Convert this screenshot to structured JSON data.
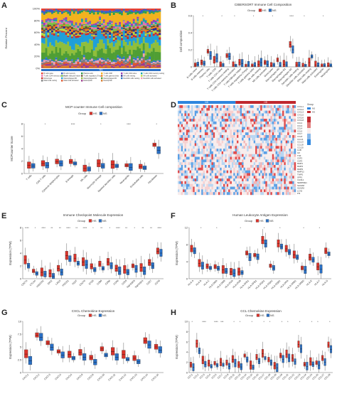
{
  "colors": {
    "HS": "#d9342b",
    "NS": "#2a6fc4",
    "heat_hi": "#c0282e",
    "heat_lo": "#2e86de"
  },
  "panels": {
    "A": {
      "letter": "A",
      "ylabel": "Relative Percent",
      "group_bar": "NS",
      "legend": [
        "B cells naive",
        "B cells memory",
        "Plasma cells",
        "T cells CD8",
        "T cells CD4 naive",
        "T cells CD4 memory resting",
        "T cells CD4 memory activated",
        "T cells follicular helper",
        "T cells regulatory (Tregs)",
        "T cells gamma delta",
        "NK cells resting",
        "NK cells activated",
        "Monocytes",
        "Macrophages M0",
        "Macrophages M1",
        "Macrophages M2",
        "Dendritic cells resting",
        "Dendritic cells activated",
        "Mast cells resting",
        "Mast cells activated",
        "Eosinophils",
        "Neutrophils"
      ],
      "colors": [
        "#e83e2f",
        "#3b5cc7",
        "#2e9e4a",
        "#f2b21e",
        "#9b3fb5",
        "#17a6a6",
        "#e86fb0",
        "#7cc242",
        "#6d4c2f",
        "#f07d1a",
        "#2b2b8f",
        "#b6d93f",
        "#c9302c",
        "#1f9fd9",
        "#8fbe3b",
        "#4f9e34",
        "#2a7ac4",
        "#f29fb5",
        "#7d7d7d",
        "#e0552b",
        "#9e3b8c",
        "#d97b2a"
      ]
    },
    "B": {
      "letter": "B",
      "title": "CIBERSORT Immune Cell Composition",
      "ylabel": "Cell composition",
      "group_label": "Group",
      "groups": [
        "HS",
        "NS"
      ],
      "sig": [
        "*",
        "*",
        "*",
        "*",
        "*",
        "****",
        "*",
        "*"
      ],
      "categories": [
        "B cells naive",
        "B cells memory",
        "Plasma cells",
        "T cells CD8",
        "T cells CD4 naive",
        "T cells CD4 memory resting",
        "T cells CD4 memory activated",
        "T cells follicular helper",
        "T cells regulatory (Tregs)",
        "T cells gamma delta",
        "NK cells resting",
        "NK cells activated",
        "Monocytes",
        "Macrophages M0",
        "Macrophages M1",
        "Macrophages M2",
        "Dendritic cells resting",
        "Dendritic cells activated",
        "Mast cells resting",
        "Mast cells activated",
        "Eosinophils",
        "Neutrophils"
      ]
    },
    "C": {
      "letter": "C",
      "title": "MCP-counter Immune Cell composition",
      "ylabel": "MCPcounter Score",
      "group_label": "Group",
      "groups": [
        "HS",
        "NS"
      ],
      "sig": [
        "*",
        "****",
        "*",
        "****",
        "*"
      ],
      "categories": [
        "T cells",
        "CD8 T cells",
        "Cytotoxic lymphocytes",
        "B lineage",
        "NK cells",
        "Monocytic lineage",
        "Myeloid dendritic cells",
        "Neutrophils",
        "Endothelial cells",
        "Fibroblasts"
      ]
    },
    "D": {
      "letter": "D",
      "group_label": "Group",
      "groups": [
        "NS",
        "HS"
      ],
      "rows": [
        "CXCL1",
        "CXCL2",
        "CXCL3",
        "CXCL5",
        "CXCL6",
        "CXCL8",
        "CCL2",
        "CCL3",
        "CCL4",
        "CCL5",
        "CCL7",
        "CCL8",
        "CCL11",
        "CCL13",
        "CCL18",
        "CCL20",
        "IL1B",
        "IL6",
        "TNF",
        "CSF2",
        "CSF3",
        "MMP1",
        "MMP3",
        "MMP9",
        "MMP12",
        "TIMP1",
        "SPP1",
        "CHI3L1",
        "SERPINE1",
        "S100A8",
        "S100A9",
        "LCN2",
        "PI3"
      ]
    },
    "E": {
      "letter": "E",
      "title": "Immune Checkpoint Molecule Expression",
      "ylabel": "Expression (TPM)",
      "group_label": "Group",
      "groups": [
        "HS",
        "NS"
      ],
      "sig": [
        "****",
        "*",
        "****",
        "**",
        "**",
        "****",
        "**",
        "****",
        "*",
        "**",
        "*",
        "****",
        "**",
        "*",
        "**",
        "**",
        "****"
      ],
      "categories": [
        "CD274",
        "CTLA4",
        "HAVCR2",
        "IDO1",
        "LAG3",
        "PDCD1",
        "TIGIT",
        "CD276",
        "ICOS",
        "CD80",
        "CD86",
        "CD40",
        "CD28",
        "TNFRSF9",
        "TNFRSF4",
        "CD27",
        "CD70"
      ]
    },
    "F": {
      "letter": "F",
      "title": "Human Leukocyte Antigen Expression",
      "ylabel": "Expression (TPM)",
      "group_label": "Group",
      "groups": [
        "HS",
        "NS"
      ],
      "sig": [
        "*",
        "*",
        "*",
        "*",
        "*",
        "*",
        "*"
      ],
      "categories": [
        "HLA-A",
        "HLA-B",
        "HLA-C",
        "HLA-DMA",
        "HLA-DMB",
        "HLA-DOA",
        "HLA-DOB",
        "HLA-DPA1",
        "HLA-DPB1",
        "HLA-DQA1",
        "HLA-DQA2",
        "HLA-DQB1",
        "HLA-DRA",
        "HLA-DRB1",
        "HLA-DRB5",
        "HLA-E",
        "HLA-F",
        "HLA-G"
      ]
    },
    "G": {
      "letter": "G",
      "title": "CXCL Chemokine Expression",
      "ylabel": "Expression (TPM)",
      "group_label": "Group",
      "groups": [
        "HS",
        "NS"
      ],
      "categories": [
        "CXCL1",
        "CXCL2",
        "CXCL3",
        "CXCL5",
        "CXCL6",
        "CXCL8",
        "CXCL9",
        "CXCL10",
        "CXCL11",
        "CXCL12",
        "CXCL13",
        "CXCL14",
        "CXCL16"
      ]
    },
    "H": {
      "letter": "H",
      "title": "CCL Chemokine Expression",
      "ylabel": "Expression (TPM)",
      "group_label": "Group",
      "groups": [
        "HS",
        "NS"
      ],
      "sig": [
        "*",
        "****",
        "****",
        "***",
        "*",
        "*",
        "*",
        "*",
        "*",
        "*",
        "*",
        "*",
        "*",
        "*",
        "*"
      ],
      "categories": [
        "CCL1",
        "CCL2",
        "CCL3",
        "CCL4",
        "CCL5",
        "CCL7",
        "CCL8",
        "CCL11",
        "CCL13",
        "CCL14",
        "CCL15",
        "CCL16",
        "CCL17",
        "CCL18",
        "CCL19",
        "CCL20",
        "CCL21",
        "CCL22",
        "CCL23",
        "CCL24",
        "CCL25",
        "CCL26",
        "CCL27",
        "CCL28"
      ]
    }
  },
  "chart_data": [
    {
      "type": "bar",
      "panel": "A",
      "stacked": true,
      "ylabel": "Relative Percent",
      "ylim": [
        0,
        100
      ],
      "yticks": [
        "0%",
        "20%",
        "40%",
        "60%",
        "80%",
        "100%"
      ],
      "n_samples": 60
    },
    {
      "type": "box",
      "panel": "B",
      "title": "CIBERSORT Immune Cell Composition",
      "ylabel": "Cell composition",
      "ylim": [
        0,
        0.6
      ],
      "yticks": [
        0,
        0.2,
        0.4,
        0.6
      ],
      "series": [
        {
          "name": "HS",
          "medians": [
            0.02,
            0.05,
            0.18,
            0.08,
            0.02,
            0.13,
            0.02,
            0.05,
            0.01,
            0.01,
            0.03,
            0.05,
            0.01,
            0.08,
            0.03,
            0.26,
            0.02,
            0.01,
            0.05,
            0.02,
            0.01,
            0.01
          ]
        },
        {
          "name": "NS",
          "medians": [
            0.03,
            0.04,
            0.13,
            0.1,
            0.02,
            0.12,
            0.01,
            0.04,
            0.02,
            0.01,
            0.05,
            0.03,
            0.02,
            0.01,
            0.02,
            0.2,
            0.02,
            0.01,
            0.12,
            0.01,
            0.01,
            0.01
          ]
        }
      ]
    },
    {
      "type": "box",
      "panel": "C",
      "title": "MCP-counter Immune Cell composition",
      "ylabel": "MCPcounter Score",
      "ylim": [
        0,
        8
      ],
      "yticks": [
        0,
        2,
        4,
        6,
        8
      ],
      "series": [
        {
          "name": "HS",
          "medians": [
            1.3,
            1.6,
            1.9,
            1.9,
            0.8,
            1.6,
            1.4,
            1.3,
            1.1,
            4.6
          ]
        },
        {
          "name": "NS",
          "medians": [
            1.2,
            1.3,
            1.6,
            1.6,
            0.7,
            1.2,
            1.2,
            1.0,
            0.9,
            3.7
          ]
        }
      ]
    },
    {
      "type": "box",
      "panel": "E",
      "title": "Immune Checkpoint Molecule Expression",
      "ylabel": "Expression (TPM)",
      "ylim": [
        0,
        8
      ],
      "yticks": [
        0,
        2,
        4,
        6,
        8
      ],
      "series": [
        {
          "name": "HS",
          "medians": [
            2.9,
            1.2,
            1.0,
            0.8,
            1.6,
            3.6,
            3.2,
            2.6,
            1.9,
            2.3,
            2.6,
            1.6,
            1.4,
            2.0,
            1.7,
            2.5,
            4.3
          ]
        },
        {
          "name": "NS",
          "medians": [
            2.0,
            0.8,
            0.7,
            0.4,
            1.0,
            3.1,
            2.4,
            2.2,
            1.4,
            1.6,
            2.0,
            1.2,
            1.0,
            1.5,
            1.2,
            2.0,
            4.0
          ]
        }
      ]
    },
    {
      "type": "box",
      "panel": "F",
      "title": "Human Leukocyte Antigen Expression",
      "ylabel": "Expression (TPM)",
      "ylim": [
        0,
        12
      ],
      "yticks": [
        0,
        4,
        8,
        12
      ],
      "series": [
        {
          "name": "HS",
          "medians": [
            7.0,
            3.6,
            2.9,
            2.8,
            2.1,
            1.6,
            1.6,
            6.0,
            5.5,
            9.0,
            3.0,
            8.2,
            7.0,
            5.6,
            2.5,
            5.0,
            2.8,
            6.5
          ]
        },
        {
          "name": "NS",
          "medians": [
            6.5,
            3.0,
            2.5,
            2.4,
            1.8,
            1.3,
            1.4,
            5.0,
            5.1,
            8.2,
            2.5,
            7.5,
            6.2,
            5.0,
            2.0,
            4.4,
            2.2,
            5.8
          ]
        }
      ]
    },
    {
      "type": "box",
      "panel": "G",
      "title": "CXCL Chemokine Expression",
      "ylabel": "Expression (TPM)",
      "ylim": [
        0,
        10
      ],
      "yticks": [
        0,
        2.5,
        5,
        7.5,
        10
      ],
      "series": [
        {
          "name": "HS",
          "medians": [
            3.6,
            7.3,
            5.8,
            4.1,
            3.5,
            3.9,
            2.9,
            4.6,
            4.1,
            3.5,
            2.8,
            6.2,
            5.0
          ]
        },
        {
          "name": "NS",
          "medians": [
            2.3,
            6.9,
            4.9,
            3.4,
            2.8,
            3.0,
            2.0,
            3.4,
            3.0,
            2.6,
            2.1,
            5.4,
            4.4
          ]
        }
      ]
    },
    {
      "type": "box",
      "panel": "H",
      "title": "CCL Chemokine Expression",
      "ylabel": "Expression (TPM)",
      "ylim": [
        0,
        10
      ],
      "yticks": [
        0,
        2,
        4,
        6,
        8,
        10
      ],
      "series": [
        {
          "name": "HS",
          "medians": [
            1.5,
            5.6,
            2.4,
            1.8,
            1.8,
            2.0,
            1.9,
            2.6,
            1.5,
            3.3,
            1.4,
            3.0,
            3.7,
            2.5,
            1.3,
            3.3,
            3.6,
            2.8,
            5.5,
            1.6,
            2.1,
            1.9,
            2.8,
            5.4
          ]
        },
        {
          "name": "NS",
          "medians": [
            1.0,
            4.2,
            1.6,
            1.2,
            1.4,
            1.5,
            1.2,
            1.8,
            1.1,
            2.5,
            1.0,
            2.2,
            2.8,
            1.9,
            0.9,
            2.6,
            2.8,
            2.1,
            4.6,
            1.2,
            1.6,
            1.4,
            2.0,
            4.5
          ]
        }
      ]
    }
  ]
}
